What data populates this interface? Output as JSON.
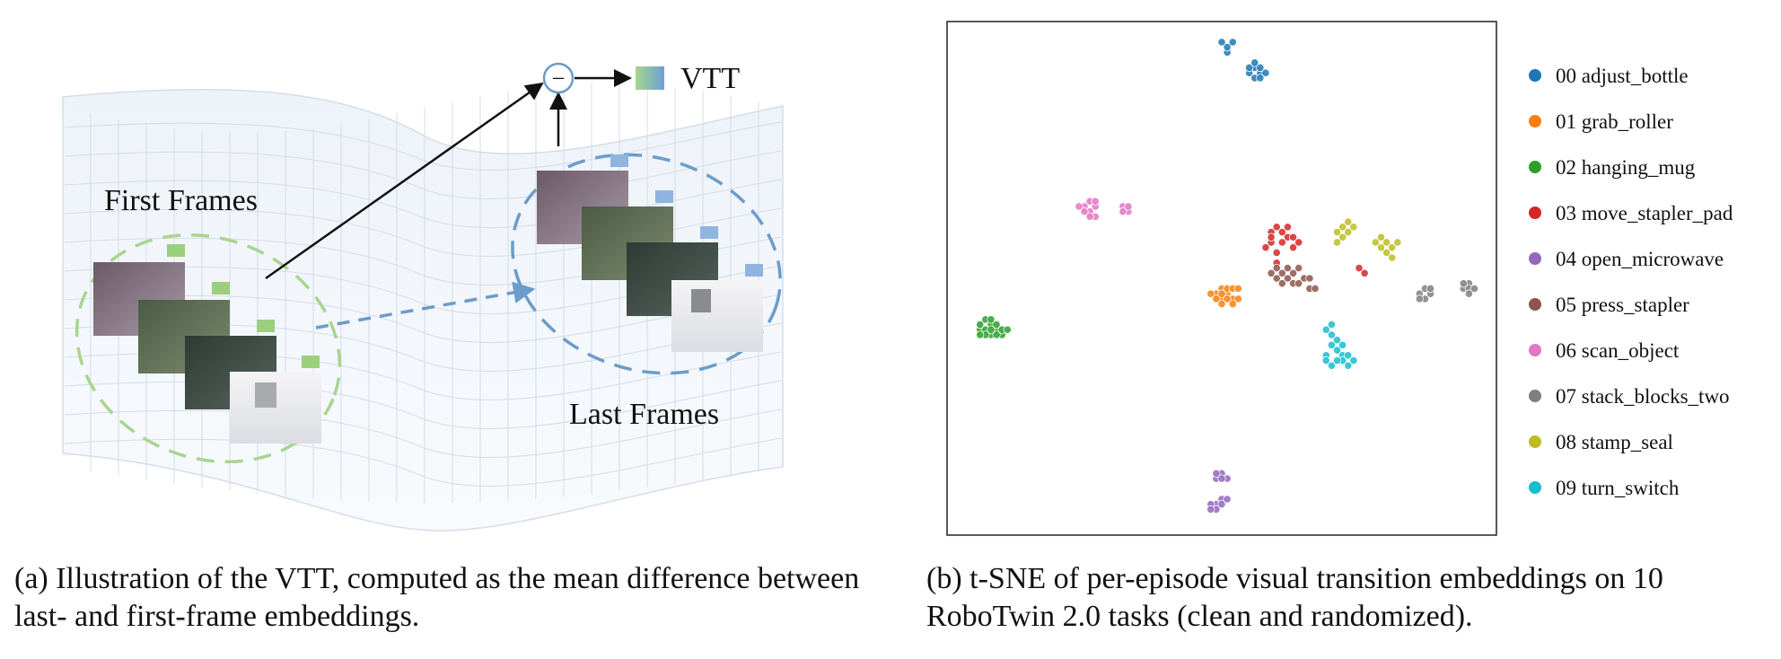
{
  "panel_a": {
    "first_frames_label": "First Frames",
    "last_frames_label": "Last Frames",
    "output_label": "VTT",
    "operator_symbol": "−",
    "colors": {
      "first": "#9bcf7c",
      "last": "#8fb4e0",
      "ellipse_first": "#a9d48f",
      "ellipse_last": "#6b9cc9"
    }
  },
  "panel_b": {
    "legend": [
      {
        "id": "00",
        "label": "00 adjust_bottle",
        "color": "#1f77b4"
      },
      {
        "id": "01",
        "label": "01 grab_roller",
        "color": "#ff7f0e"
      },
      {
        "id": "02",
        "label": "02 hanging_mug",
        "color": "#2ca02c"
      },
      {
        "id": "03",
        "label": "03 move_stapler_pad",
        "color": "#d62728"
      },
      {
        "id": "04",
        "label": "04 open_microwave",
        "color": "#9467bd"
      },
      {
        "id": "05",
        "label": "05 press_stapler",
        "color": "#8c564b"
      },
      {
        "id": "06",
        "label": "06 scan_object",
        "color": "#e377c2"
      },
      {
        "id": "07",
        "label": "07 stack_blocks_two",
        "color": "#7f7f7f"
      },
      {
        "id": "08",
        "label": "08 stamp_seal",
        "color": "#bcbd22"
      },
      {
        "id": "09",
        "label": "09 turn_switch",
        "color": "#17becf"
      }
    ]
  },
  "chart_data": {
    "type": "scatter",
    "title": "",
    "xlabel": "",
    "ylabel": "",
    "axes_ticks": false,
    "grid": false,
    "legend_placement": "right",
    "xlim": [
      0,
      100
    ],
    "ylim": [
      0,
      100
    ],
    "series": [
      {
        "name": "00 adjust_bottle",
        "color": "#1f77b4",
        "points": [
          [
            51,
            94
          ],
          [
            50,
            96
          ],
          [
            51,
            95
          ],
          [
            52,
            96
          ],
          [
            56,
            91
          ],
          [
            57,
            90
          ],
          [
            55,
            90
          ],
          [
            56,
            89
          ],
          [
            57,
            91
          ],
          [
            58,
            90
          ],
          [
            55,
            91
          ],
          [
            56,
            92
          ],
          [
            57,
            89
          ]
        ]
      },
      {
        "name": "01 grab_roller",
        "color": "#ff7f0e",
        "points": [
          [
            49,
            47
          ],
          [
            50,
            46
          ],
          [
            51,
            47
          ],
          [
            52,
            46
          ],
          [
            50,
            48
          ],
          [
            51,
            48
          ],
          [
            52,
            48
          ],
          [
            49,
            46
          ],
          [
            50,
            45
          ],
          [
            51,
            46
          ],
          [
            53,
            46
          ],
          [
            50,
            47
          ],
          [
            52,
            45
          ],
          [
            48,
            47
          ],
          [
            53,
            48
          ]
        ]
      },
      {
        "name": "02 hanging_mug",
        "color": "#2ca02c",
        "points": [
          [
            6,
            40
          ],
          [
            7,
            40
          ],
          [
            8,
            39
          ],
          [
            9,
            40
          ],
          [
            10,
            39
          ],
          [
            6,
            41
          ],
          [
            7,
            42
          ],
          [
            8,
            41
          ],
          [
            9,
            41
          ],
          [
            10,
            40
          ],
          [
            7,
            39
          ],
          [
            8,
            40
          ],
          [
            11,
            40
          ],
          [
            6,
            39
          ],
          [
            9,
            39
          ],
          [
            8,
            42
          ]
        ]
      },
      {
        "name": "03 move_stapler_pad",
        "color": "#d62728",
        "points": [
          [
            59,
            59
          ],
          [
            60,
            60
          ],
          [
            61,
            59
          ],
          [
            62,
            58
          ],
          [
            59,
            57
          ],
          [
            61,
            57
          ],
          [
            60,
            55
          ],
          [
            63,
            56
          ],
          [
            58,
            56
          ],
          [
            64,
            57
          ],
          [
            60,
            53
          ],
          [
            63,
            58
          ],
          [
            75,
            52
          ],
          [
            76,
            51
          ],
          [
            62,
            60
          ],
          [
            59,
            58
          ]
        ]
      },
      {
        "name": "04 open_microwave",
        "color": "#9467bd",
        "points": [
          [
            49,
            11
          ],
          [
            50,
            12
          ],
          [
            51,
            11
          ],
          [
            50,
            11
          ],
          [
            49,
            12
          ],
          [
            49,
            6
          ],
          [
            50,
            7
          ],
          [
            48,
            6
          ],
          [
            49,
            5
          ],
          [
            50,
            6
          ],
          [
            51,
            7
          ],
          [
            48,
            5
          ]
        ]
      },
      {
        "name": "05 press_stapler",
        "color": "#8c564b",
        "points": [
          [
            60,
            50
          ],
          [
            61,
            51
          ],
          [
            62,
            50
          ],
          [
            63,
            51
          ],
          [
            64,
            52
          ],
          [
            61,
            49
          ],
          [
            63,
            49
          ],
          [
            65,
            50
          ],
          [
            66,
            48
          ],
          [
            60,
            52
          ],
          [
            62,
            52
          ],
          [
            64,
            49
          ],
          [
            59,
            51
          ],
          [
            66,
            50
          ],
          [
            67,
            48
          ]
        ]
      },
      {
        "name": "06 scan_object",
        "color": "#e377c2",
        "points": [
          [
            25,
            64
          ],
          [
            26,
            63
          ],
          [
            27,
            64
          ],
          [
            26,
            65
          ],
          [
            25,
            63
          ],
          [
            27,
            62
          ],
          [
            24,
            64
          ],
          [
            26,
            62
          ],
          [
            32,
            64
          ],
          [
            33,
            63
          ],
          [
            32,
            63
          ],
          [
            33,
            64
          ],
          [
            27,
            65
          ]
        ]
      },
      {
        "name": "07 stack_blocks_two",
        "color": "#7f7f7f",
        "points": [
          [
            86,
            47
          ],
          [
            87,
            48
          ],
          [
            88,
            47
          ],
          [
            87,
            46
          ],
          [
            86,
            46
          ],
          [
            94,
            48
          ],
          [
            95,
            49
          ],
          [
            94,
            49
          ],
          [
            95,
            48
          ],
          [
            96,
            48
          ],
          [
            88,
            48
          ],
          [
            95,
            47
          ]
        ]
      },
      {
        "name": "08 stamp_seal",
        "color": "#bcbd22",
        "points": [
          [
            71,
            59
          ],
          [
            72,
            60
          ],
          [
            73,
            59
          ],
          [
            72,
            58
          ],
          [
            73,
            61
          ],
          [
            71,
            57
          ],
          [
            78,
            57
          ],
          [
            79,
            56
          ],
          [
            80,
            55
          ],
          [
            81,
            56
          ],
          [
            80,
            57
          ],
          [
            82,
            57
          ],
          [
            81,
            54
          ],
          [
            79,
            58
          ],
          [
            74,
            60
          ]
        ]
      },
      {
        "name": "09 turn_switch",
        "color": "#17becf",
        "points": [
          [
            69,
            40
          ],
          [
            70,
            39
          ],
          [
            71,
            38
          ],
          [
            70,
            37
          ],
          [
            71,
            36
          ],
          [
            72,
            35
          ],
          [
            69,
            35
          ],
          [
            70,
            33
          ],
          [
            72,
            34
          ],
          [
            73,
            33
          ],
          [
            71,
            34
          ],
          [
            74,
            34
          ],
          [
            70,
            41
          ],
          [
            72,
            37
          ],
          [
            73,
            35
          ],
          [
            69,
            34
          ]
        ]
      }
    ]
  },
  "captions": {
    "a": "(a) Illustration of the VTT, computed as the mean difference between last- and first-frame embeddings.",
    "b": "(b) t-SNE of per-episode visual transition embeddings on 10 RoboTwin 2.0 tasks (clean and randomized)."
  }
}
